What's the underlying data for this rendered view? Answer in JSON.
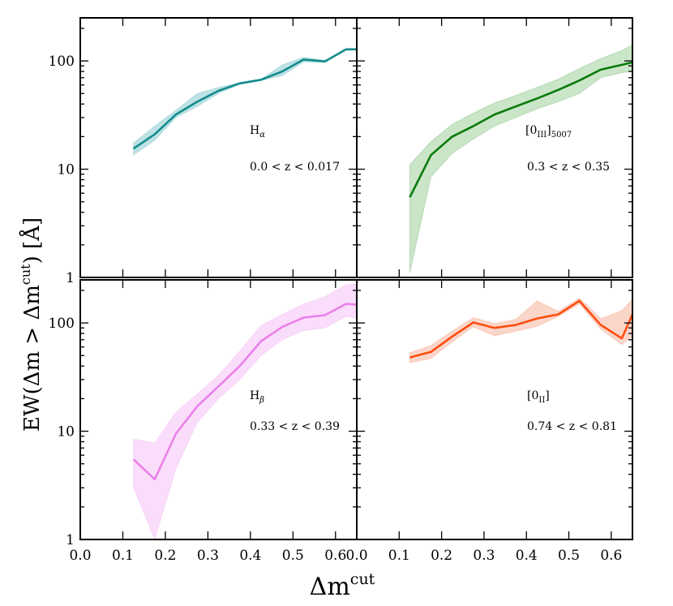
{
  "chart_data": {
    "type": "line",
    "layout": "2x2 shared axes",
    "xlabel": "Δm",
    "xlabel_sup": "cut",
    "ylabel": "EW(Δm > Δm",
    "ylabel_sup": "cut",
    "ylabel_end": ") [Å]",
    "xscale": "linear",
    "yscale": "log",
    "xlim": [
      0.0,
      0.65
    ],
    "ylim": [
      1,
      250
    ],
    "xticks": [
      "0.0",
      "0.1",
      "0.2",
      "0.3",
      "0.4",
      "0.5",
      "0.6"
    ],
    "yticks": [
      {
        "value": 1,
        "label": "1"
      },
      {
        "value": 10,
        "label": "10"
      },
      {
        "value": 100,
        "label": "100"
      }
    ],
    "panels": [
      {
        "id": "halpha",
        "line_label": "H",
        "line_sub": "α",
        "z_label": "0.0 < z < 0.017",
        "color": "#138b8b",
        "band_color": "#a8d8de",
        "x": [
          0.125,
          0.175,
          0.225,
          0.275,
          0.325,
          0.375,
          0.425,
          0.475,
          0.525,
          0.575,
          0.625,
          0.65
        ],
        "y": [
          15.5,
          21,
          32,
          42,
          53,
          62,
          67,
          80,
          103,
          99,
          128,
          128
        ],
        "y_low": [
          13.5,
          18.5,
          30,
          38,
          50,
          61,
          66,
          73,
          98,
          97,
          126,
          126
        ],
        "y_high": [
          17.5,
          25,
          35,
          50,
          57,
          63,
          68,
          92,
          108,
          101,
          130,
          130
        ]
      },
      {
        "id": "oiii",
        "line_label": "[0",
        "line_sub": "III",
        "line_end": "]",
        "line_sub2": "5007",
        "z_label": "0.3 < z < 0.35",
        "color": "#0a7a0a",
        "band_color": "#b8dcb4",
        "x": [
          0.125,
          0.175,
          0.225,
          0.275,
          0.325,
          0.375,
          0.425,
          0.475,
          0.525,
          0.575,
          0.625,
          0.65
        ],
        "y": [
          5.5,
          13.5,
          20,
          25,
          32,
          38,
          45,
          54,
          66,
          83,
          92,
          97
        ],
        "y_low": [
          1.1,
          8.5,
          14,
          19,
          25,
          30,
          36,
          42,
          50,
          70,
          78,
          80
        ],
        "y_high": [
          11,
          18,
          26,
          33,
          41,
          48,
          57,
          68,
          85,
          105,
          125,
          140
        ]
      },
      {
        "id": "hbeta",
        "line_label": "H",
        "line_sub": "β",
        "z_label": "0.33 < z < 0.39",
        "color": "#ea80ea",
        "band_color": "#f8d2f8",
        "x": [
          0.125,
          0.175,
          0.225,
          0.275,
          0.325,
          0.375,
          0.425,
          0.475,
          0.525,
          0.575,
          0.625,
          0.65
        ],
        "y": [
          5.5,
          3.6,
          9.5,
          17,
          26,
          40,
          68,
          92,
          112,
          118,
          150,
          148
        ],
        "y_low": [
          3.0,
          1.0,
          4.5,
          12,
          20,
          30,
          50,
          70,
          85,
          90,
          115,
          110
        ],
        "y_high": [
          8.5,
          7.8,
          15,
          22,
          33,
          55,
          95,
          120,
          150,
          175,
          225,
          230
        ]
      },
      {
        "id": "oii",
        "line_label": "[0",
        "line_sub": "II",
        "line_end": "]",
        "line_sub2": "",
        "z_label": "0.74 < z < 0.81",
        "color": "#ff4d10",
        "band_color": "#f8c8b8",
        "x": [
          0.125,
          0.175,
          0.225,
          0.275,
          0.325,
          0.375,
          0.425,
          0.475,
          0.525,
          0.575,
          0.625,
          0.65
        ],
        "y": [
          48,
          54,
          75,
          101,
          90,
          96,
          110,
          120,
          160,
          96,
          72,
          120
        ],
        "y_low": [
          43,
          47,
          67,
          92,
          76,
          84,
          93,
          115,
          150,
          88,
          63,
          76
        ],
        "y_high": [
          53,
          62,
          84,
          112,
          99,
          108,
          160,
          128,
          170,
          110,
          130,
          165
        ]
      }
    ]
  }
}
